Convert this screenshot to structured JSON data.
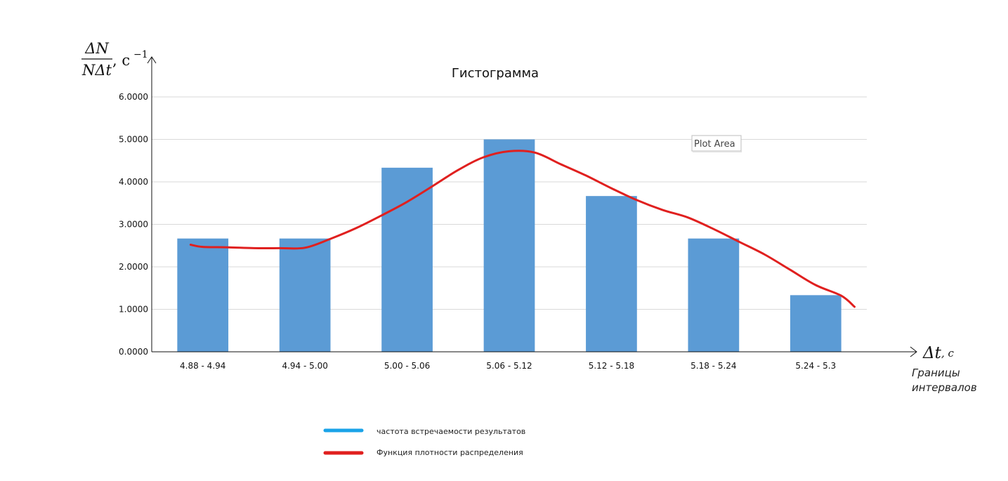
{
  "chart_data": {
    "type": "bar",
    "title": "Гистограмма",
    "y_axis": {
      "label_numerator": "ΔN",
      "label_denominator": "NΔt",
      "label_unit": ", c",
      "label_unit_exponent": "−1",
      "ylim": [
        0,
        6
      ],
      "ticks": [
        "0.0000",
        "1.0000",
        "2.0000",
        "3.0000",
        "4.0000",
        "5.0000",
        "6.0000"
      ],
      "grid": true
    },
    "x_axis": {
      "label_symbol": "Δt",
      "label_unit": ", c",
      "caption_line1": "Границы",
      "caption_line2": "интервалов"
    },
    "categories": [
      "4.88 - 4.94",
      "4.94 - 5.00",
      "5.00 - 5.06",
      "5.06 - 5.12",
      "5.12 - 5.18",
      "5.18 - 5.24",
      "5.24 - 5.3"
    ],
    "series": [
      {
        "name": "частота встречаемости результатов",
        "type": "bar",
        "color": "#5b9bd5",
        "values": [
          2.6667,
          2.6667,
          4.3333,
          5.0,
          3.6667,
          2.6667,
          1.3333
        ]
      },
      {
        "name": "Функция плотности распределения",
        "type": "line",
        "color": "#e0201f",
        "points": [
          [
            -0.12,
            2.52
          ],
          [
            0.0,
            2.47
          ],
          [
            0.25,
            2.46
          ],
          [
            0.5,
            2.44
          ],
          [
            0.75,
            2.44
          ],
          [
            1.0,
            2.45
          ],
          [
            1.25,
            2.66
          ],
          [
            1.5,
            2.91
          ],
          [
            1.75,
            3.21
          ],
          [
            2.0,
            3.53
          ],
          [
            2.25,
            3.9
          ],
          [
            2.5,
            4.28
          ],
          [
            2.75,
            4.58
          ],
          [
            3.0,
            4.72
          ],
          [
            3.25,
            4.69
          ],
          [
            3.5,
            4.42
          ],
          [
            3.75,
            4.15
          ],
          [
            4.0,
            3.85
          ],
          [
            4.25,
            3.57
          ],
          [
            4.5,
            3.34
          ],
          [
            4.75,
            3.16
          ],
          [
            5.0,
            2.89
          ],
          [
            5.25,
            2.59
          ],
          [
            5.5,
            2.29
          ],
          [
            5.75,
            1.93
          ],
          [
            6.0,
            1.57
          ],
          [
            6.25,
            1.32
          ],
          [
            6.38,
            1.06
          ]
        ]
      }
    ],
    "legend_placement": "bottom"
  },
  "tooltip": {
    "text": "Plot Area"
  }
}
